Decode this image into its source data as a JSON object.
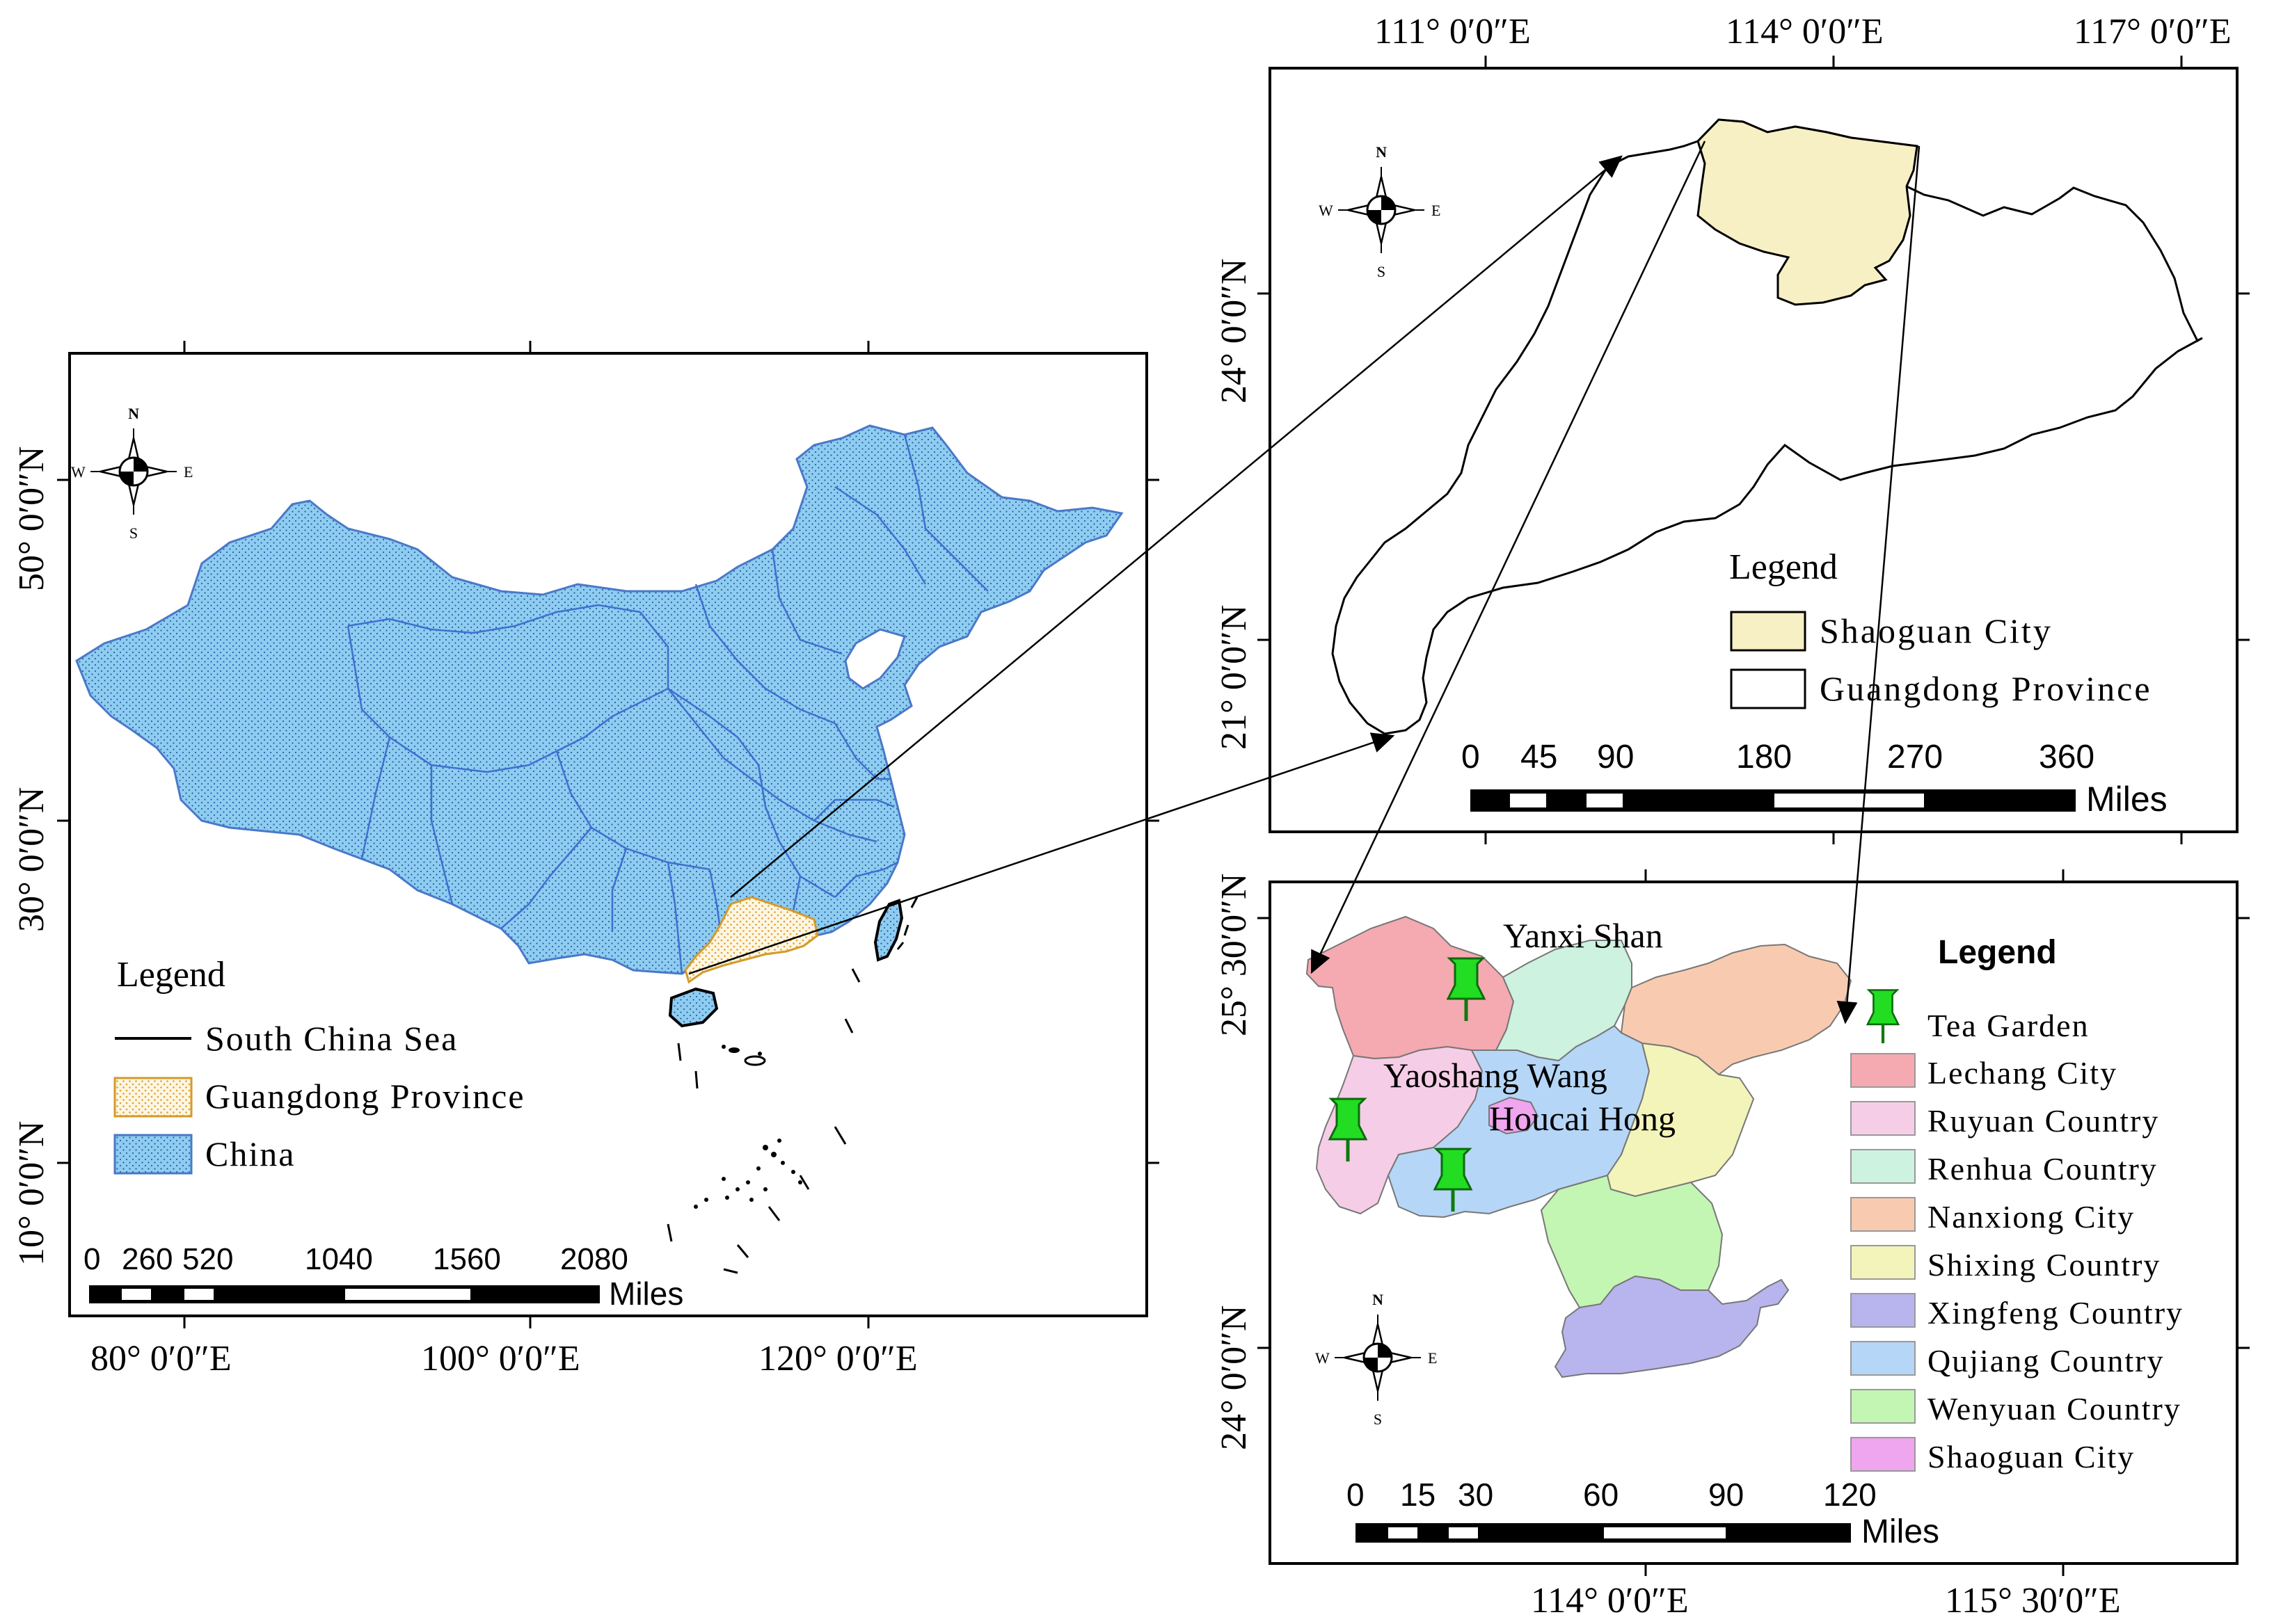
{
  "china_map": {
    "legend_title": "Legend",
    "legend_items": [
      {
        "label": "South China Sea",
        "symbol": "line"
      },
      {
        "label": "Guangdong Province",
        "symbol": "dotted-orange",
        "color": "#e0a030"
      },
      {
        "label": "China",
        "symbol": "dotted-blue",
        "color": "#8ecdf0"
      }
    ],
    "scale_labels": [
      "0",
      "260",
      "520",
      "1040",
      "1560",
      "2080"
    ],
    "scale_unit": "Miles",
    "lon_labels": [
      "80° 0′0″E",
      "100° 0′0″E",
      "120° 0′0″E"
    ],
    "lat_labels": [
      "50° 0′0″N",
      "30° 0′0″N",
      "10° 0′0″N"
    ],
    "compass": {
      "n": "N",
      "s": "S",
      "e": "E",
      "w": "W"
    }
  },
  "guangdong_map": {
    "legend_title": "Legend",
    "legend_items": [
      {
        "label": "Shaoguan City",
        "color": "#f6f0c4"
      },
      {
        "label": "Guangdong Province",
        "color": "#ffffff"
      }
    ],
    "scale_labels": [
      "0",
      "45",
      "90",
      "180",
      "270",
      "360"
    ],
    "scale_unit": "Miles",
    "lon_labels": [
      "111° 0′0″E",
      "114° 0′0″E",
      "117° 0′0″E"
    ],
    "lat_labels": [
      "24° 0′0″N",
      "21° 0′0″N"
    ],
    "compass": {
      "n": "N",
      "s": "S",
      "e": "E",
      "w": "W"
    }
  },
  "shaoguan_map": {
    "legend_title": "Legend",
    "tea_garden_label": "Tea Garden",
    "legend_items": [
      {
        "label": "Lechang City",
        "color": "#f5a9b1"
      },
      {
        "label": "Ruyuan Country",
        "color": "#f6cde6"
      },
      {
        "label": "Renhua Country",
        "color": "#cdf2df"
      },
      {
        "label": "Nanxiong City",
        "color": "#f8cbb0"
      },
      {
        "label": "Shixing Country",
        "color": "#f3f4b9"
      },
      {
        "label": "Xingfeng Country",
        "color": "#b8b4ee"
      },
      {
        "label": "Qujiang Country",
        "color": "#b6d6f7"
      },
      {
        "label": "Wenyuan Country",
        "color": "#c3f5b3"
      },
      {
        "label": "Shaoguan City",
        "color": "#f0a5ef"
      }
    ],
    "place_labels": [
      "Yanxi Shan",
      "Yaoshang Wang",
      "Houcai Hong"
    ],
    "scale_labels": [
      "0",
      "15",
      "30",
      "60",
      "90",
      "120"
    ],
    "scale_unit": "Miles",
    "lon_labels": [
      "114° 0′0″E",
      "115° 30′0″E"
    ],
    "lat_labels": [
      "25° 30′0″N",
      "24° 0′0″N"
    ],
    "compass": {
      "n": "N",
      "s": "S",
      "e": "E",
      "w": "W"
    }
  }
}
